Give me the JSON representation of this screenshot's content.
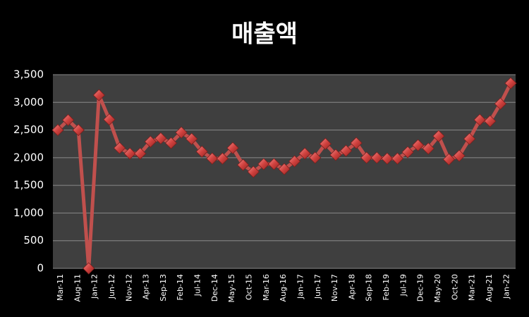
{
  "chart_data": {
    "type": "line",
    "title": "매출액",
    "categories": [
      "Mar-11",
      "Aug-11",
      "Jan-12",
      "Jun-12",
      "Nov-12",
      "Apr-13",
      "Sep-13",
      "Feb-14",
      "Jul-14",
      "Dec-14",
      "May-15",
      "Oct-15",
      "Mar-16",
      "Aug-16",
      "Jan-17",
      "Jun-17",
      "Nov-17",
      "Apr-18",
      "Sep-18",
      "Feb-19",
      "Jul-19",
      "Dec-19",
      "May-20",
      "Oct-20",
      "Mar-21",
      "Aug-21",
      "Jan-22"
    ],
    "x": [
      "Mar-11",
      "Jun-11",
      "Sep-11",
      "Dec-11",
      "Mar-12",
      "Jun-12",
      "Sep-12",
      "Dec-12",
      "Mar-13",
      "Jun-13",
      "Sep-13",
      "Dec-13",
      "Mar-14",
      "Jun-14",
      "Sep-14",
      "Dec-14",
      "Mar-15",
      "Jun-15",
      "Sep-15",
      "Dec-15",
      "Mar-16",
      "Jun-16",
      "Sep-16",
      "Dec-16",
      "Mar-17",
      "Jun-17",
      "Sep-17",
      "Dec-17",
      "Mar-18",
      "Jun-18",
      "Sep-18",
      "Dec-18",
      "Mar-19",
      "Jun-19",
      "Sep-19",
      "Dec-19",
      "Mar-20",
      "Jun-20",
      "Sep-20",
      "Dec-20",
      "Mar-21",
      "Jun-21",
      "Sep-21",
      "Dec-21",
      "Mar-22"
    ],
    "series": [
      {
        "color": "#c0504d",
        "values": [
          2500,
          2680,
          2500,
          0,
          3130,
          2690,
          2175,
          2075,
          2075,
          2290,
          2350,
          2265,
          2455,
          2340,
          2110,
          1985,
          1985,
          2175,
          1870,
          1745,
          1885,
          1885,
          1795,
          1935,
          2075,
          2000,
          2250,
          2050,
          2125,
          2265,
          2000,
          2000,
          1985,
          1985,
          2100,
          2225,
          2165,
          2390,
          1970,
          2035,
          2340,
          2685,
          2660,
          2975,
          3345
        ]
      }
    ],
    "ylim": [
      0,
      3500
    ],
    "yticks": [
      0,
      500,
      {
        "value": 1000,
        "label": "1,000"
      },
      {
        "value": 1500,
        "label": "1,500"
      },
      {
        "value": 2000,
        "label": "2,000"
      },
      {
        "value": 2500,
        "label": "2,500"
      },
      {
        "value": 3000,
        "label": "3,000"
      },
      {
        "value": 3500,
        "label": "3,500"
      }
    ],
    "grid": true
  }
}
